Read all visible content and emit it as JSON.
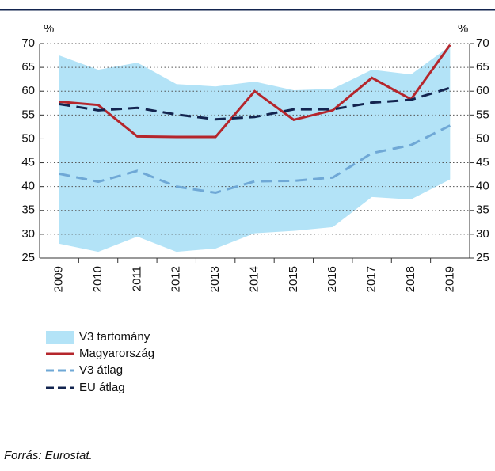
{
  "chart_data": {
    "type": "line",
    "categories": [
      "2009",
      "2010",
      "2011",
      "2012",
      "2013",
      "2014",
      "2015",
      "2016",
      "2017",
      "2018",
      "2019"
    ],
    "y_unit": "%",
    "ylim": [
      25,
      70
    ],
    "yticks": [
      25,
      30,
      35,
      40,
      45,
      50,
      55,
      60,
      65,
      70
    ],
    "grid": true,
    "series": [
      {
        "name": "V3 tartomány",
        "kind": "band",
        "color": "#b3e3f7",
        "high": [
          67.5,
          64.5,
          66,
          61.5,
          61,
          62,
          60.2,
          60.5,
          64.5,
          63.5,
          69.5
        ],
        "low": [
          28,
          26.3,
          29.5,
          26.3,
          27,
          30.2,
          30.7,
          31.5,
          37.8,
          37.3,
          41.5
        ]
      },
      {
        "name": "Magyarország",
        "kind": "solid",
        "color": "#b5262c",
        "values": [
          57.8,
          57.1,
          50.5,
          50.4,
          50.4,
          60,
          54,
          56,
          62.8,
          58.3,
          69.7
        ]
      },
      {
        "name": "V3 átlag",
        "kind": "dashed",
        "color": "#6fa8d6",
        "values": [
          42.7,
          41,
          43.3,
          40,
          38.7,
          41.1,
          41.2,
          41.9,
          47,
          48.7,
          52.8
        ]
      },
      {
        "name": "EU átlag",
        "kind": "dashed",
        "color": "#13244f",
        "values": [
          57.3,
          56,
          56.5,
          55.1,
          54.1,
          54.6,
          56.2,
          56.2,
          57.6,
          58.2,
          60.7
        ]
      }
    ],
    "source": "Forrás: Eurostat."
  }
}
